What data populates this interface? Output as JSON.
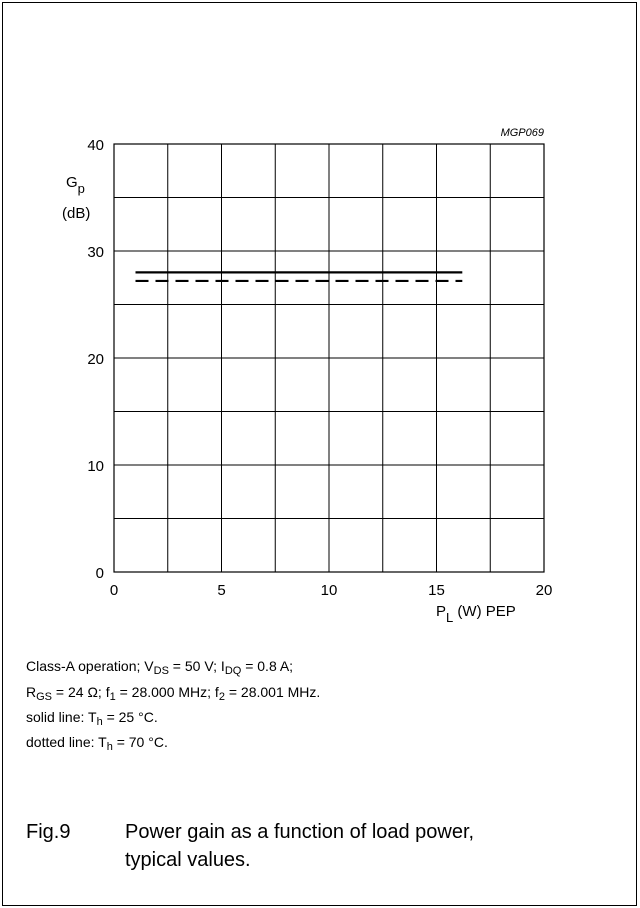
{
  "chart_data": {
    "type": "line",
    "code": "MGP069",
    "ylabel_main": "G",
    "ylabel_sub": "p",
    "ylabel_unit": "(dB)",
    "xlabel_main": "P",
    "xlabel_sub": "L",
    "xlabel_unit": "(W) PEP",
    "xlim": [
      0,
      20
    ],
    "ylim": [
      0,
      40
    ],
    "x_ticks": [
      0,
      5,
      10,
      15,
      20
    ],
    "y_ticks": [
      0,
      10,
      20,
      30,
      40
    ],
    "grid": true,
    "series": [
      {
        "name": "T_h = 25 °C",
        "style": "solid",
        "x": [
          1,
          16.2
        ],
        "y": [
          28,
          28
        ]
      },
      {
        "name": "T_h = 70 °C",
        "style": "dotted",
        "x": [
          1,
          16.2
        ],
        "y": [
          27.2,
          27.2
        ]
      }
    ]
  },
  "notes": {
    "line1": {
      "a": "Class-A operation; V",
      "a_sub": "DS",
      "b": " = 50 V;  I",
      "b_sub": "DQ",
      "c": " = 0.8 A;"
    },
    "line2": {
      "a": "R",
      "a_sub": "GS",
      "b": " = 24 Ω; f",
      "b_sub": "1",
      "c": " = 28.000 MHz; f",
      "c_sub": "2",
      "d": " = 28.001 MHz."
    },
    "line3": {
      "a": "solid line: T",
      "a_sub": "h",
      "b": " = 25 °C."
    },
    "line4": {
      "a": "dotted line: T",
      "a_sub": "h",
      "b": " = 70 °C."
    }
  },
  "caption": {
    "number": "Fig.9",
    "text": "Power gain as a function of load power, typical values."
  }
}
